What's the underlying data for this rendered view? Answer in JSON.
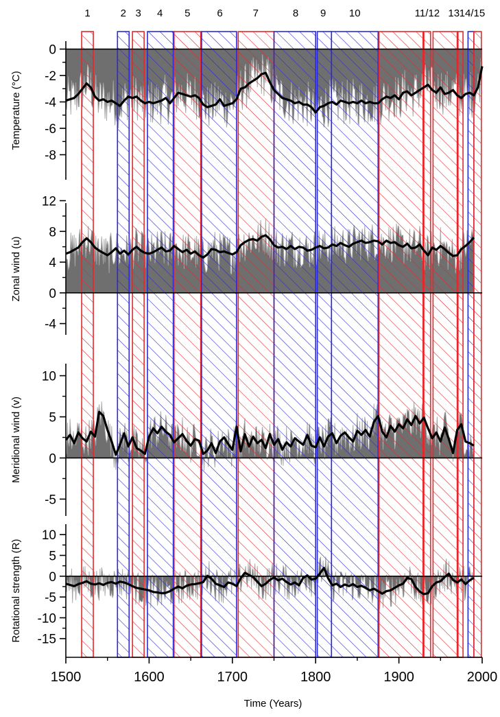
{
  "chart_data": {
    "type": "line",
    "xlabel": "Time (Years)",
    "xlim": [
      1500,
      2000
    ],
    "xticks": [
      1500,
      1600,
      1700,
      1800,
      1900,
      2000
    ],
    "period_labels": [
      "1",
      "2",
      "3",
      "4",
      "5",
      "6",
      "7",
      "8",
      "9",
      "10",
      "11/12",
      "13",
      "14/15"
    ],
    "periods": [
      {
        "x0": 1519,
        "x1": 1533,
        "color": "#e8262b"
      },
      {
        "x0": 1562,
        "x1": 1576,
        "color": "#2b2bd6"
      },
      {
        "x0": 1580,
        "x1": 1594,
        "color": "#e8262b"
      },
      {
        "x0": 1598,
        "x1": 1629,
        "color": "#2b2bd6"
      },
      {
        "x0": 1630,
        "x1": 1662,
        "color": "#e8262b"
      },
      {
        "x0": 1663,
        "x1": 1705,
        "color": "#2b2bd6"
      },
      {
        "x0": 1707,
        "x1": 1750,
        "color": "#e8262b"
      },
      {
        "x0": 1750,
        "x1": 1800,
        "color": "#2b2bd6"
      },
      {
        "x0": 1802,
        "x1": 1819,
        "color": "#2b2bd6"
      },
      {
        "x0": 1819,
        "x1": 1875,
        "color": "#2b2bd6"
      },
      {
        "x0": 1876,
        "x1": 1929,
        "color": "#e8262b"
      },
      {
        "x0": 1930,
        "x1": 1938,
        "color": "#e8262b"
      },
      {
        "x0": 1941,
        "x1": 1970,
        "color": "#e8262b"
      },
      {
        "x0": 1971,
        "x1": 1977,
        "color": "#e8262b"
      },
      {
        "x0": 1983,
        "x1": 1990,
        "color": "#2b2bd6"
      },
      {
        "x0": 1990,
        "x1": 1999,
        "color": "#e8262b"
      }
    ],
    "panels": [
      {
        "ylabel": "Temperature (°C)",
        "ylim": [
          -10,
          0.6
        ],
        "ytick_labels": [
          "0",
          "-2",
          "-4",
          "-6",
          "-8"
        ],
        "yticks": [
          0,
          -2,
          -4,
          -6,
          -8
        ],
        "baseline": 0,
        "smoothed": {
          "x": [
            1500,
            1505,
            1510,
            1515,
            1520,
            1525,
            1530,
            1535,
            1540,
            1545,
            1550,
            1555,
            1560,
            1565,
            1570,
            1575,
            1580,
            1585,
            1590,
            1595,
            1600,
            1605,
            1610,
            1615,
            1620,
            1625,
            1630,
            1635,
            1640,
            1645,
            1650,
            1655,
            1660,
            1665,
            1670,
            1675,
            1680,
            1685,
            1690,
            1695,
            1700,
            1705,
            1710,
            1715,
            1720,
            1725,
            1730,
            1735,
            1740,
            1745,
            1750,
            1755,
            1760,
            1765,
            1770,
            1775,
            1780,
            1785,
            1790,
            1795,
            1800,
            1805,
            1810,
            1815,
            1820,
            1825,
            1830,
            1835,
            1840,
            1845,
            1850,
            1855,
            1860,
            1865,
            1870,
            1875,
            1880,
            1885,
            1890,
            1895,
            1900,
            1905,
            1910,
            1915,
            1920,
            1925,
            1930,
            1935,
            1940,
            1945,
            1950,
            1955,
            1960,
            1965,
            1970,
            1975,
            1980,
            1985,
            1990,
            1995,
            2000
          ],
          "y": [
            -3.9,
            -3.8,
            -3.7,
            -3.4,
            -3.0,
            -2.6,
            -2.9,
            -3.6,
            -3.9,
            -3.8,
            -4.0,
            -3.9,
            -4.1,
            -4.3,
            -3.9,
            -3.6,
            -3.7,
            -3.6,
            -3.9,
            -4.1,
            -4.0,
            -4.1,
            -4.0,
            -3.9,
            -3.7,
            -4.1,
            -3.7,
            -3.3,
            -3.4,
            -3.5,
            -3.6,
            -3.5,
            -3.7,
            -4.2,
            -4.4,
            -4.3,
            -4.2,
            -3.8,
            -4.3,
            -4.2,
            -4.1,
            -3.8,
            -3.0,
            -2.9,
            -2.6,
            -2.4,
            -2.2,
            -1.9,
            -1.8,
            -2.5,
            -3.1,
            -3.4,
            -3.7,
            -3.8,
            -3.9,
            -4.1,
            -4.0,
            -4.2,
            -4.2,
            -4.4,
            -4.8,
            -4.4,
            -4.3,
            -4.1,
            -4.0,
            -4.2,
            -3.9,
            -4.0,
            -4.1,
            -4.0,
            -4.1,
            -3.9,
            -4.1,
            -4.0,
            -4.1,
            -4.1,
            -3.8,
            -3.6,
            -3.7,
            -3.5,
            -3.8,
            -3.3,
            -3.2,
            -3.5,
            -3.3,
            -3.1,
            -2.9,
            -2.7,
            -3.1,
            -3.3,
            -2.9,
            -3.4,
            -3.3,
            -3.1,
            -3.5,
            -3.7,
            -3.4,
            -3.3,
            -3.5,
            -2.9,
            -1.3
          ]
        }
      },
      {
        "ylabel": "Zonal wind (u)",
        "ylim": [
          -6,
          12.4
        ],
        "ytick_labels": [
          "12",
          "8",
          "4",
          "0",
          "-4"
        ],
        "yticks": [
          12,
          8,
          4,
          0,
          -4
        ],
        "baseline": 0,
        "smoothed": {
          "x": [
            1500,
            1505,
            1510,
            1515,
            1520,
            1525,
            1530,
            1535,
            1540,
            1545,
            1550,
            1555,
            1560,
            1565,
            1570,
            1575,
            1580,
            1585,
            1590,
            1595,
            1600,
            1605,
            1610,
            1615,
            1620,
            1625,
            1630,
            1635,
            1640,
            1645,
            1650,
            1655,
            1660,
            1665,
            1670,
            1675,
            1680,
            1685,
            1690,
            1695,
            1700,
            1705,
            1710,
            1715,
            1720,
            1725,
            1730,
            1735,
            1740,
            1745,
            1750,
            1755,
            1760,
            1765,
            1770,
            1775,
            1780,
            1785,
            1790,
            1795,
            1800,
            1805,
            1810,
            1815,
            1820,
            1825,
            1830,
            1835,
            1840,
            1845,
            1850,
            1855,
            1860,
            1865,
            1870,
            1875,
            1880,
            1885,
            1890,
            1895,
            1900,
            1905,
            1910,
            1915,
            1920,
            1925,
            1930,
            1935,
            1940,
            1945,
            1950,
            1955,
            1960,
            1965,
            1970,
            1975,
            1980,
            1985,
            1990
          ],
          "y": [
            5.1,
            5.3,
            5.6,
            5.9,
            6.6,
            7.1,
            6.6,
            5.9,
            5.5,
            5.2,
            4.9,
            5.3,
            5.8,
            5.1,
            5.5,
            5.0,
            5.6,
            6.0,
            5.5,
            5.2,
            5.1,
            5.3,
            5.6,
            5.9,
            5.4,
            5.5,
            6.1,
            5.7,
            5.3,
            5.6,
            5.1,
            5.4,
            4.9,
            4.6,
            5.0,
            5.7,
            5.6,
            5.3,
            5.4,
            5.2,
            5.0,
            5.3,
            6.2,
            6.6,
            6.9,
            7.0,
            6.8,
            7.3,
            7.5,
            7.0,
            6.2,
            5.9,
            6.0,
            5.7,
            6.1,
            5.7,
            6.0,
            5.9,
            5.5,
            5.6,
            5.9,
            6.1,
            5.8,
            5.9,
            6.3,
            6.1,
            6.5,
            6.2,
            6.0,
            6.4,
            6.6,
            6.8,
            6.5,
            6.6,
            6.8,
            6.7,
            6.3,
            6.8,
            6.5,
            6.6,
            6.2,
            6.0,
            6.4,
            5.8,
            5.9,
            6.3,
            5.5,
            4.9,
            5.9,
            5.6,
            6.1,
            5.7,
            5.2,
            4.8,
            4.9,
            5.7,
            6.1,
            6.6,
            7.2
          ]
        }
      },
      {
        "ylabel": "Meridional wind (v)",
        "ylim": [
          -7.3,
          11.8
        ],
        "ytick_labels": [
          "10",
          "5",
          "0",
          "-5"
        ],
        "yticks": [
          10,
          5,
          0,
          -5
        ],
        "baseline": 0,
        "smoothed": {
          "x": [
            1500,
            1505,
            1510,
            1515,
            1520,
            1525,
            1530,
            1535,
            1540,
            1545,
            1550,
            1555,
            1560,
            1565,
            1570,
            1575,
            1580,
            1585,
            1590,
            1595,
            1600,
            1605,
            1610,
            1615,
            1620,
            1625,
            1630,
            1635,
            1640,
            1645,
            1650,
            1655,
            1660,
            1665,
            1670,
            1675,
            1680,
            1685,
            1690,
            1695,
            1700,
            1705,
            1710,
            1715,
            1720,
            1725,
            1730,
            1735,
            1740,
            1745,
            1750,
            1755,
            1760,
            1765,
            1770,
            1775,
            1780,
            1785,
            1790,
            1795,
            1800,
            1805,
            1810,
            1815,
            1820,
            1825,
            1830,
            1835,
            1840,
            1845,
            1850,
            1855,
            1860,
            1865,
            1870,
            1875,
            1880,
            1885,
            1890,
            1895,
            1900,
            1905,
            1910,
            1915,
            1920,
            1925,
            1930,
            1935,
            1940,
            1945,
            1950,
            1955,
            1960,
            1965,
            1970,
            1975,
            1980,
            1985,
            1990
          ],
          "y": [
            2.2,
            2.8,
            1.8,
            3.1,
            2.4,
            2.0,
            3.2,
            2.6,
            5.6,
            5.1,
            3.4,
            2.0,
            0.4,
            1.6,
            3.0,
            1.4,
            2.5,
            1.2,
            0.9,
            0.5,
            2.6,
            3.6,
            3.0,
            3.8,
            3.2,
            2.8,
            1.9,
            2.4,
            2.9,
            2.1,
            1.5,
            2.3,
            2.1,
            0.5,
            0.9,
            1.8,
            0.6,
            2.0,
            2.5,
            1.7,
            1.0,
            3.8,
            0.8,
            2.9,
            1.4,
            2.6,
            1.8,
            2.2,
            1.2,
            2.9,
            1.6,
            2.3,
            1.0,
            1.9,
            1.4,
            2.4,
            2.0,
            1.6,
            2.8,
            1.5,
            1.3,
            2.5,
            1.4,
            2.6,
            3.0,
            1.8,
            2.7,
            3.1,
            2.5,
            2.0,
            3.3,
            2.8,
            3.4,
            2.6,
            4.4,
            5.1,
            3.2,
            2.5,
            3.9,
            3.2,
            4.1,
            3.6,
            4.7,
            4.0,
            5.1,
            4.2,
            4.9,
            3.6,
            2.4,
            3.1,
            2.0,
            3.7,
            2.3,
            0.6,
            3.4,
            4.1,
            2.0,
            1.8,
            1.5
          ]
        }
      },
      {
        "ylabel": "Rotational strength (R)",
        "ylim": [
          -19.5,
          12.5
        ],
        "ytick_labels": [
          "10",
          "5",
          "0",
          "-5",
          "-10",
          "-15"
        ],
        "yticks": [
          10,
          5,
          0,
          -5,
          -10,
          -15
        ],
        "baseline": 0,
        "smoothed": {
          "x": [
            1500,
            1505,
            1510,
            1515,
            1520,
            1525,
            1530,
            1535,
            1540,
            1545,
            1550,
            1555,
            1560,
            1565,
            1570,
            1575,
            1580,
            1585,
            1590,
            1595,
            1600,
            1605,
            1610,
            1615,
            1620,
            1625,
            1630,
            1635,
            1640,
            1645,
            1650,
            1655,
            1660,
            1665,
            1670,
            1675,
            1680,
            1685,
            1690,
            1695,
            1700,
            1705,
            1710,
            1715,
            1720,
            1725,
            1730,
            1735,
            1740,
            1745,
            1750,
            1755,
            1760,
            1765,
            1770,
            1775,
            1780,
            1785,
            1790,
            1795,
            1800,
            1805,
            1810,
            1815,
            1820,
            1825,
            1830,
            1835,
            1840,
            1845,
            1850,
            1855,
            1860,
            1865,
            1870,
            1875,
            1880,
            1885,
            1890,
            1895,
            1900,
            1905,
            1910,
            1915,
            1920,
            1925,
            1930,
            1935,
            1940,
            1945,
            1950,
            1955,
            1960,
            1965,
            1970,
            1975,
            1980,
            1985,
            1990
          ],
          "y": [
            -1.8,
            -2.1,
            -2.4,
            -1.9,
            -1.6,
            -1.2,
            -1.8,
            -2.0,
            -1.7,
            -2.1,
            -1.6,
            -1.4,
            -1.8,
            -1.3,
            -1.5,
            -1.9,
            -2.4,
            -2.8,
            -3.0,
            -3.2,
            -3.4,
            -3.8,
            -3.9,
            -4.1,
            -4.0,
            -3.6,
            -3.0,
            -2.5,
            -2.9,
            -2.3,
            -2.0,
            -1.9,
            -1.7,
            -1.4,
            0.1,
            -0.6,
            -1.8,
            -2.2,
            -2.6,
            -1.5,
            -1.8,
            -2.4,
            -0.5,
            0.8,
            0.3,
            -0.2,
            -1.3,
            -2.4,
            -1.8,
            -0.9,
            -0.3,
            -1.0,
            -0.6,
            -1.4,
            -2.0,
            -1.5,
            -2.2,
            -0.4,
            0.2,
            -0.8,
            -0.6,
            0.6,
            2.0,
            -0.5,
            -2.2,
            -1.8,
            -2.6,
            -2.0,
            -2.4,
            -1.9,
            -2.6,
            -2.3,
            -2.8,
            -3.4,
            -3.0,
            -3.6,
            -4.2,
            -3.6,
            -3.4,
            -2.8,
            -2.2,
            -1.8,
            -0.4,
            -0.7,
            -2.6,
            -3.7,
            -4.3,
            -4.1,
            -2.4,
            -1.5,
            -1.2,
            -0.2,
            0.6,
            -0.9,
            -1.5,
            -0.8,
            -1.9,
            -1.0,
            -0.4
          ]
        }
      }
    ]
  }
}
